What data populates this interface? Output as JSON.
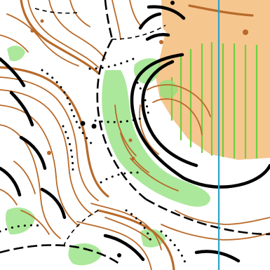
{
  "map": {
    "kind": "orienteering-map-excerpt",
    "colors": {
      "paper": "#ffffff",
      "contour": "#b86a2a",
      "open_land": "#f6c68f",
      "slow_run_vegetation": "#8fe07a",
      "vegetation_stripes": "#6fcf3f",
      "cliff_and_track": "#000000",
      "magnetic_north_line": "#2aa3c9"
    },
    "symbols": [
      "contour-line",
      "index-contour",
      "open-land",
      "rough-open-land",
      "slow-run-vegetation",
      "cliff",
      "footpath",
      "small-path",
      "vehicle-track",
      "boulder",
      "magnetic-north-line"
    ]
  }
}
